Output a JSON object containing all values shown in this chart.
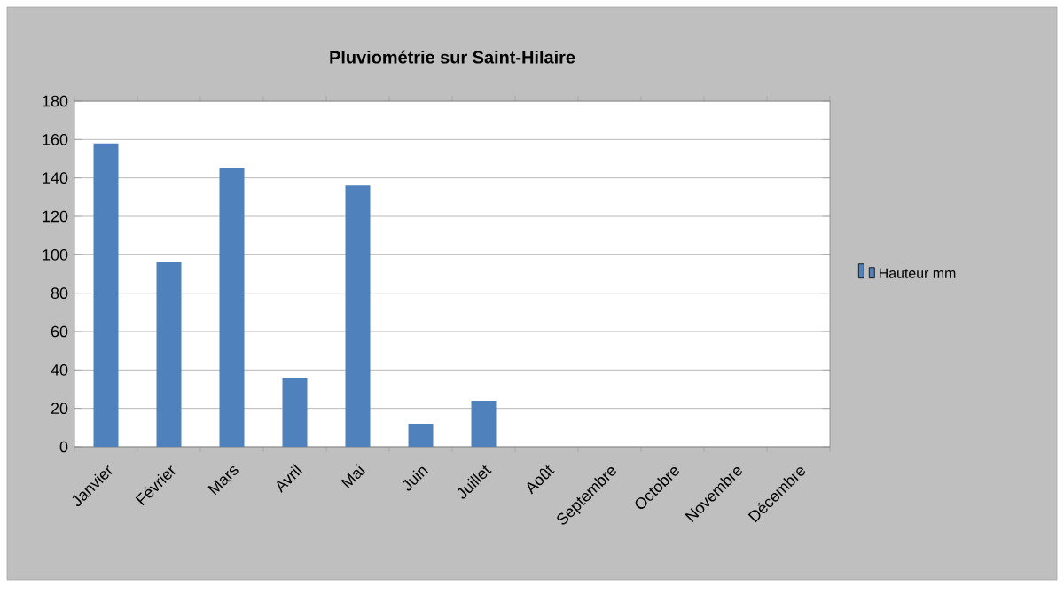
{
  "chart_data": {
    "type": "bar",
    "title": "Pluviométrie sur Saint-Hilaire",
    "categories": [
      "Janvier",
      "Février",
      "Mars",
      "Avril",
      "Mai",
      "Juin",
      "Juillet",
      "Août",
      "Septembre",
      "Octobre",
      "Novembre",
      "Décembre"
    ],
    "series": [
      {
        "name": "Hauteur mm",
        "color": "#4f81bd",
        "values": [
          158,
          96,
          145,
          36,
          136,
          12,
          24,
          null,
          null,
          null,
          null,
          null
        ]
      }
    ],
    "ylim": [
      0,
      180
    ],
    "yticks": [
      0,
      20,
      40,
      60,
      80,
      100,
      120,
      140,
      160,
      180
    ],
    "grid": "y",
    "legend": "right"
  }
}
